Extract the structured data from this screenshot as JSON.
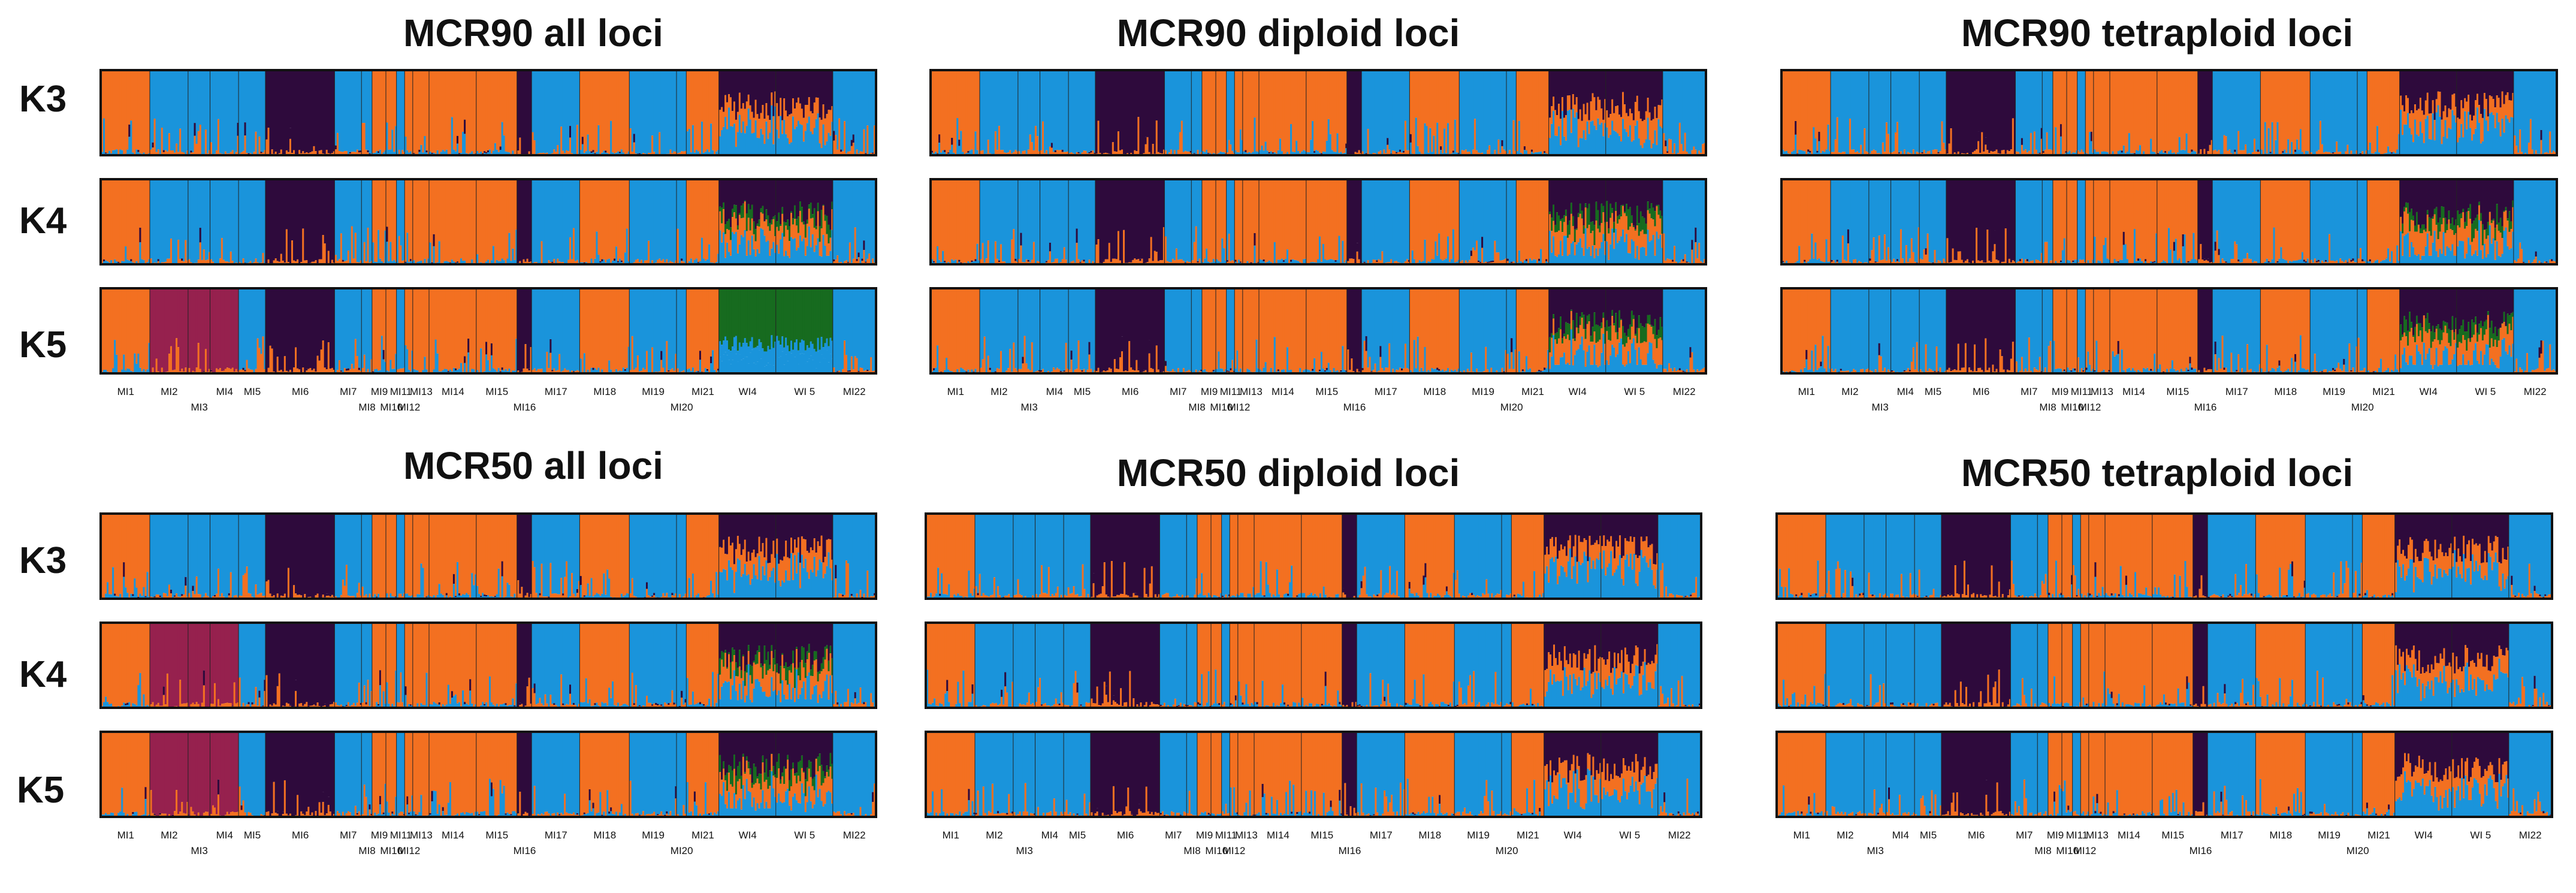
{
  "colors": {
    "orange": "#F37021",
    "blue": "#1A94DB",
    "purple": "#2E0A3C",
    "green": "#176B1F",
    "maroon": "#96214E"
  },
  "population_labels": [
    "MI1",
    "MI2",
    "MI3",
    "MI4",
    "MI5",
    "MI6",
    "MI7",
    "MI8",
    "MI9",
    "MI10",
    "MI11",
    "MI12",
    "MI13",
    "MI14",
    "MI15",
    "MI16",
    "MI17",
    "MI18",
    "MI19",
    "MI20",
    "MI21",
    "WI4",
    "WI 5",
    "MI22"
  ],
  "k_labels": [
    "K3",
    "K4",
    "K5"
  ],
  "chart_data": [
    {
      "type": "structure-barplot",
      "title": "MCR90 all loci",
      "k_values": [
        3,
        4,
        5
      ]
    },
    {
      "type": "structure-barplot",
      "title": "MCR90 diploid loci",
      "k_values": [
        3,
        4,
        5
      ]
    },
    {
      "type": "structure-barplot",
      "title": "MCR90 tetraploid loci",
      "k_values": [
        3,
        4,
        5
      ]
    },
    {
      "type": "structure-barplot",
      "title": "MCR50 all loci",
      "k_values": [
        3,
        4,
        5
      ]
    },
    {
      "type": "structure-barplot",
      "title": "MCR50 diploid loci",
      "k_values": [
        3,
        4,
        5
      ]
    },
    {
      "type": "structure-barplot",
      "title": "MCR50 tetraploid loci",
      "k_values": [
        3,
        4,
        5
      ]
    }
  ]
}
